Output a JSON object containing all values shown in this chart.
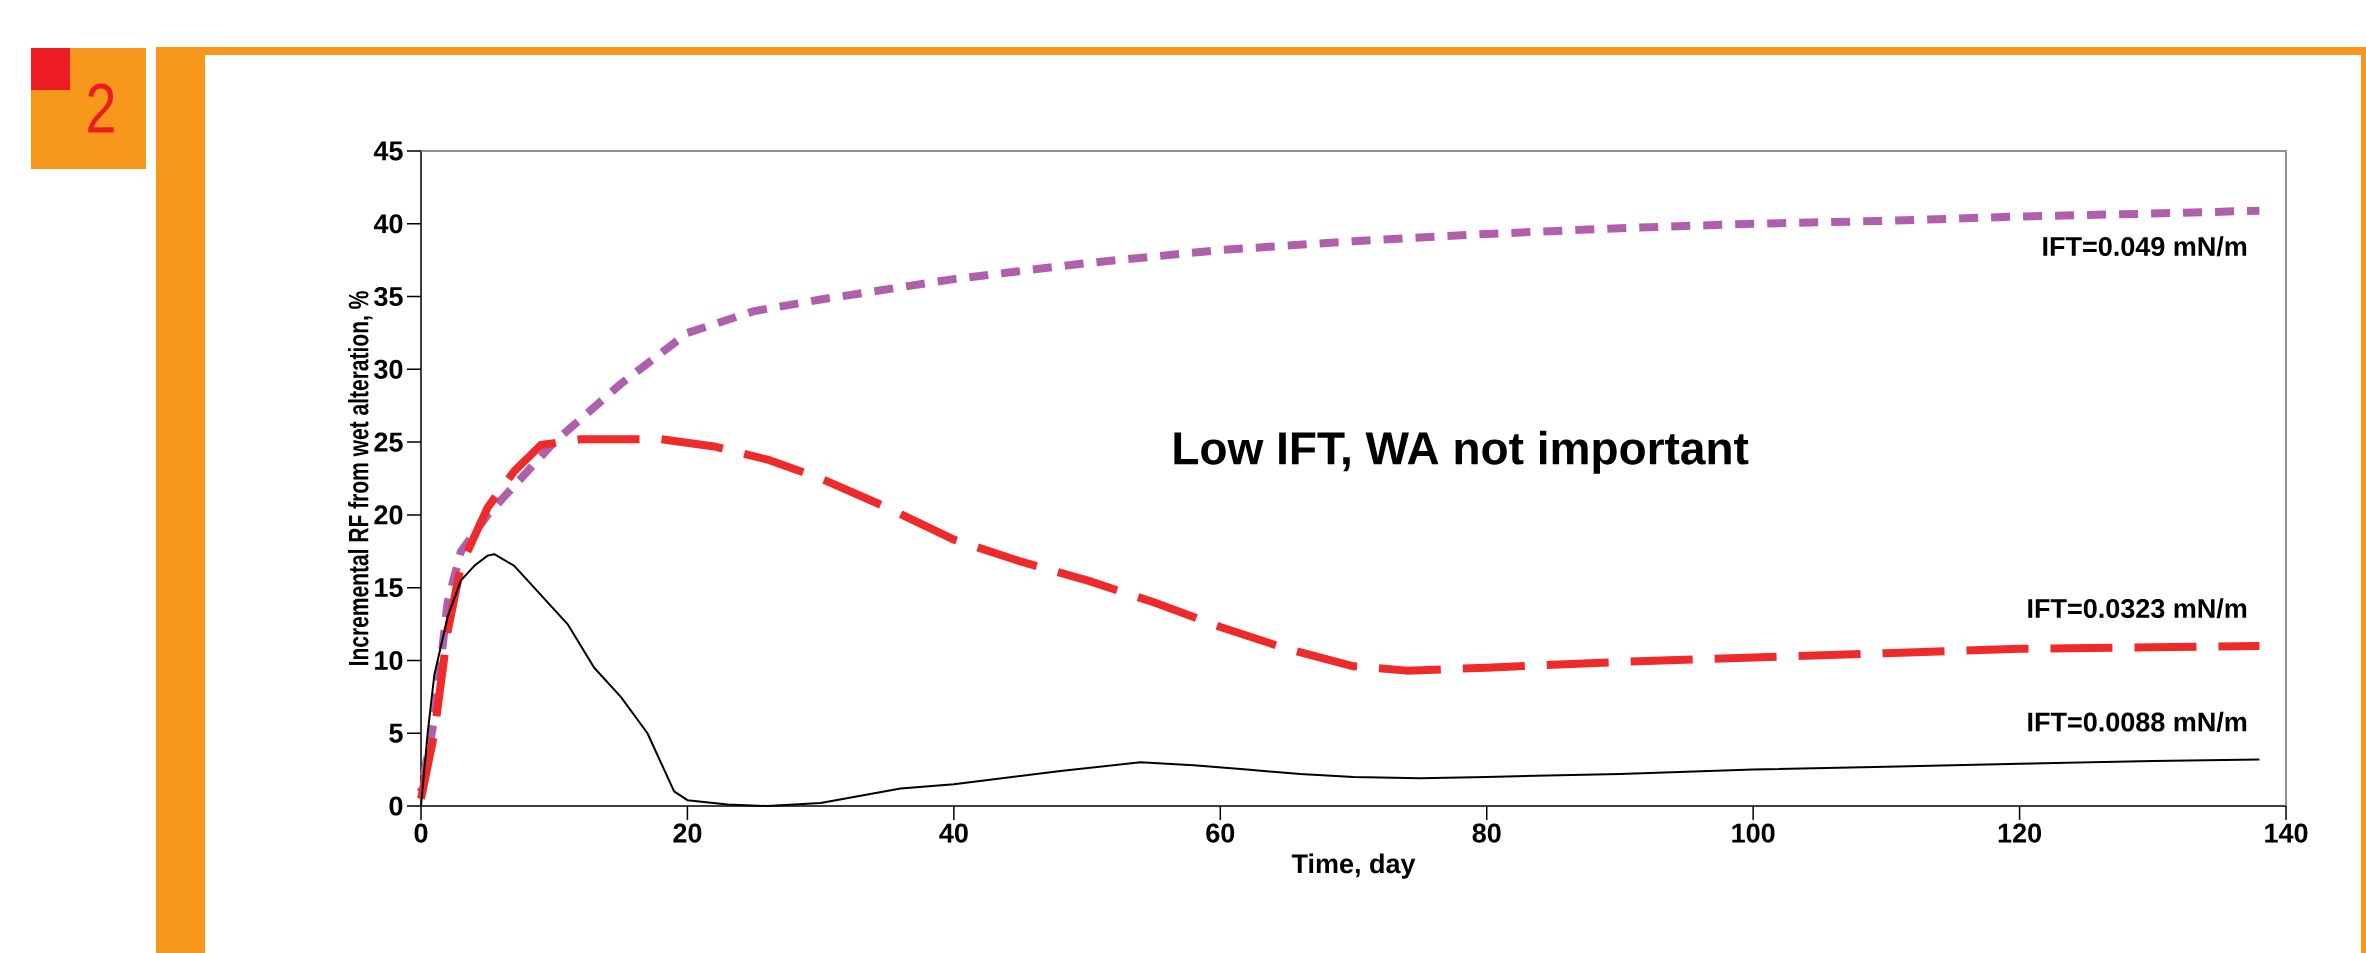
{
  "chart_data": {
    "type": "line",
    "xlabel": "Time, day",
    "ylabel": "Incremental RF from wet alteration, %",
    "xlim": [
      0,
      140
    ],
    "xticks": [
      0,
      20,
      40,
      60,
      80,
      100,
      120,
      140
    ],
    "ylim": [
      0,
      45
    ],
    "yticks": [
      0,
      5,
      10,
      15,
      20,
      25,
      30,
      35,
      40,
      45
    ],
    "grid": false,
    "legend": false,
    "marker": "none",
    "annotations": [
      "Low IFT, WA not important",
      "2"
    ],
    "series": [
      {
        "name": "IFT=0.049 mN/m",
        "color": "#b05fac",
        "line_style": "dotted",
        "x": [
          0,
          1,
          2,
          3,
          5,
          7,
          10,
          15,
          20,
          25,
          30,
          35,
          40,
          50,
          60,
          70,
          80,
          90,
          100,
          110,
          120,
          130,
          138
        ],
        "values": [
          1,
          6,
          14,
          17.5,
          20,
          22,
          25,
          29,
          32.5,
          34,
          34.8,
          35.5,
          36.2,
          37.3,
          38.2,
          38.8,
          39.3,
          39.7,
          40,
          40.2,
          40.5,
          40.7,
          40.9
        ]
      },
      {
        "name": "IFT=0.0323 mN/m",
        "color": "#ee2a2a",
        "line_style": "dashed",
        "x": [
          0,
          1,
          2,
          3,
          5,
          7,
          9,
          12,
          18,
          22,
          26,
          30,
          35,
          40,
          45,
          50,
          55,
          60,
          65,
          70,
          74,
          80,
          90,
          100,
          110,
          120,
          130,
          138
        ],
        "values": [
          0.5,
          5,
          12,
          16.5,
          20.5,
          23,
          24.8,
          25.2,
          25.2,
          24.7,
          23.8,
          22.5,
          20.5,
          18.3,
          16.8,
          15.5,
          14,
          12.3,
          10.8,
          9.6,
          9.3,
          9.5,
          9.9,
          10.2,
          10.5,
          10.8,
          10.9,
          11
        ]
      },
      {
        "name": "IFT=0.0088 mN/m",
        "color": "#000000",
        "line_style": "solid",
        "x": [
          0,
          0.5,
          1,
          2,
          3,
          4,
          5,
          5.5,
          7,
          9,
          11,
          13,
          15,
          17,
          19,
          20,
          23,
          26,
          30,
          33,
          36,
          40,
          48,
          54,
          58,
          62,
          66,
          70,
          75,
          80,
          90,
          100,
          110,
          120,
          130,
          138
        ],
        "values": [
          0,
          5,
          9,
          13,
          15.5,
          16.5,
          17.2,
          17.3,
          16.5,
          14.5,
          12.5,
          9.5,
          7.5,
          5,
          1,
          0.4,
          0.1,
          0,
          0.2,
          0.7,
          1.2,
          1.5,
          2.4,
          3,
          2.8,
          2.5,
          2.2,
          2,
          1.9,
          2,
          2.2,
          2.5,
          2.7,
          2.9,
          3.1,
          3.2
        ]
      }
    ]
  }
}
